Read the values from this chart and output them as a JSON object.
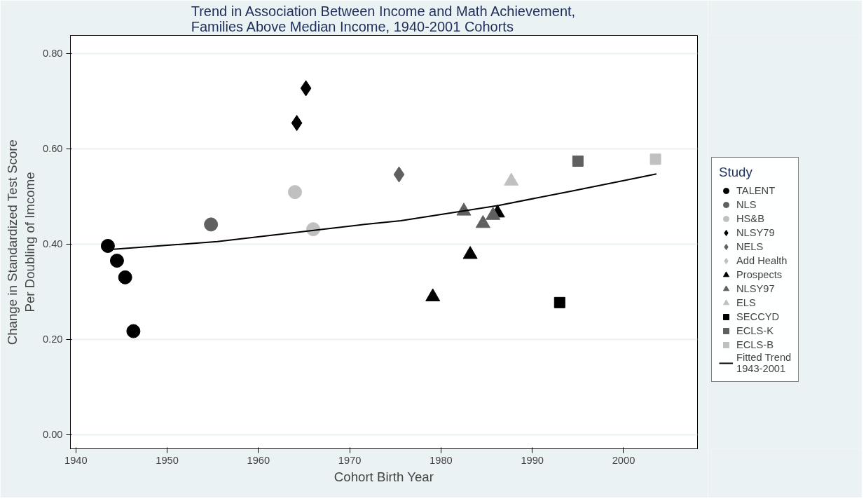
{
  "chart_data": {
    "type": "scatter",
    "title": "Trend in Association Between Income and Math Achievement,\nFamilies Above Median Income, 1940-2001 Cohorts",
    "xlabel": "Cohort Birth Year",
    "ylabel": "Change in Standardized Test Score\nPer Doubling of Imcome",
    "legend_title": "Study",
    "legend": "right",
    "grid": "y",
    "xlim": [
      1939.4,
      2008.1
    ],
    "ylim": [
      -0.03,
      0.838
    ],
    "xticks": [
      1940,
      1950,
      1960,
      1970,
      1980,
      1990,
      2000
    ],
    "yticks": [
      {
        "value": 0,
        "label": "0.00"
      },
      {
        "value": 0.2,
        "label": "0.20"
      },
      {
        "value": 0.4,
        "label": "0.40"
      },
      {
        "value": 0.6,
        "label": "0.60"
      },
      {
        "value": 0.8,
        "label": "0.80"
      }
    ],
    "series": [
      {
        "name": "TALENT",
        "color": "#000000",
        "marker": "circle",
        "x": [
          1943.5,
          1944.5,
          1945.4,
          1946.3
        ],
        "values": [
          0.396,
          0.365,
          0.33,
          0.217
        ]
      },
      {
        "name": "NLS",
        "color": "#606060",
        "marker": "circle",
        "x": [
          1954.8
        ],
        "values": [
          0.441
        ]
      },
      {
        "name": "HS&B",
        "color": "#c0c0c0",
        "marker": "circle",
        "x": [
          1964.0,
          1966.0
        ],
        "values": [
          0.509,
          0.431
        ]
      },
      {
        "name": "NLSY79",
        "color": "#000000",
        "marker": "diamond",
        "x": [
          1964.2,
          1965.2
        ],
        "values": [
          0.654,
          0.727
        ]
      },
      {
        "name": "NELS",
        "color": "#606060",
        "marker": "diamond",
        "x": [
          1975.4
        ],
        "values": [
          0.546
        ]
      },
      {
        "name": "Add Health",
        "color": "#c0c0c0",
        "marker": "diamond"
      },
      {
        "name": "Prospects",
        "color": "#000000",
        "marker": "triangle",
        "x": [
          1979.1,
          1983.2,
          1986.2
        ],
        "values": [
          0.289,
          0.378,
          0.465
        ]
      },
      {
        "name": "NLSY97",
        "color": "#606060",
        "marker": "triangle",
        "x": [
          1982.5,
          1984.6,
          1985.7
        ],
        "values": [
          0.469,
          0.443,
          0.46
        ]
      },
      {
        "name": "ELS",
        "color": "#c0c0c0",
        "marker": "triangle",
        "x": [
          1987.7
        ],
        "values": [
          0.532
        ]
      },
      {
        "name": "SECCYD",
        "color": "#000000",
        "marker": "square",
        "x": [
          1993.0
        ],
        "values": [
          0.277
        ]
      },
      {
        "name": "ECLS-K",
        "color": "#606060",
        "marker": "square",
        "x": [
          1995.0
        ],
        "values": [
          0.574
        ]
      },
      {
        "name": "ECLS-B",
        "color": "#c0c0c0",
        "marker": "square",
        "x": [
          2003.5
        ],
        "values": [
          0.578
        ]
      },
      {
        "name": "Fitted Trend\n1943-2001",
        "type": "line",
        "color": "#000000",
        "x": [
          1944.1,
          1955.5,
          1971.6,
          1975.6,
          1986.3,
          1994.3,
          2003.6
        ],
        "values": [
          0.389,
          0.405,
          0.441,
          0.449,
          0.481,
          0.511,
          0.547
        ]
      }
    ]
  }
}
